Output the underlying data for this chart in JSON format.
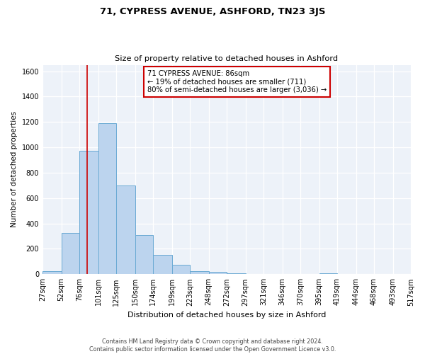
{
  "title": "71, CYPRESS AVENUE, ASHFORD, TN23 3JS",
  "subtitle": "Size of property relative to detached houses in Ashford",
  "xlabel": "Distribution of detached houses by size in Ashford",
  "ylabel": "Number of detached properties",
  "bin_labels": [
    "27sqm",
    "52sqm",
    "76sqm",
    "101sqm",
    "125sqm",
    "150sqm",
    "174sqm",
    "199sqm",
    "223sqm",
    "248sqm",
    "272sqm",
    "297sqm",
    "321sqm",
    "346sqm",
    "370sqm",
    "395sqm",
    "419sqm",
    "444sqm",
    "468sqm",
    "493sqm",
    "517sqm"
  ],
  "bin_edges": [
    27,
    52,
    76,
    101,
    125,
    150,
    174,
    199,
    223,
    248,
    272,
    297,
    321,
    346,
    370,
    395,
    419,
    444,
    468,
    493,
    517
  ],
  "bar_heights": [
    25,
    325,
    970,
    1190,
    700,
    310,
    150,
    75,
    25,
    20,
    5,
    0,
    0,
    0,
    0,
    5,
    0,
    0,
    0,
    0,
    5
  ],
  "bar_color": "#bcd4ee",
  "bar_edge_color": "#6aaad4",
  "bar_linewidth": 0.7,
  "vline_x": 86,
  "vline_color": "#cc0000",
  "vline_linewidth": 1.2,
  "ylim": [
    0,
    1650
  ],
  "yticks": [
    0,
    200,
    400,
    600,
    800,
    1000,
    1200,
    1400,
    1600
  ],
  "annotation_title": "71 CYPRESS AVENUE: 86sqm",
  "annotation_line1": "← 19% of detached houses are smaller (711)",
  "annotation_line2": "80% of semi-detached houses are larger (3,036) →",
  "annotation_box_color": "#cc0000",
  "footer_line1": "Contains HM Land Registry data © Crown copyright and database right 2024.",
  "footer_line2": "Contains public sector information licensed under the Open Government Licence v3.0.",
  "bg_color": "#edf2f9",
  "grid_color": "#ffffff",
  "fig_bg_color": "#ffffff"
}
